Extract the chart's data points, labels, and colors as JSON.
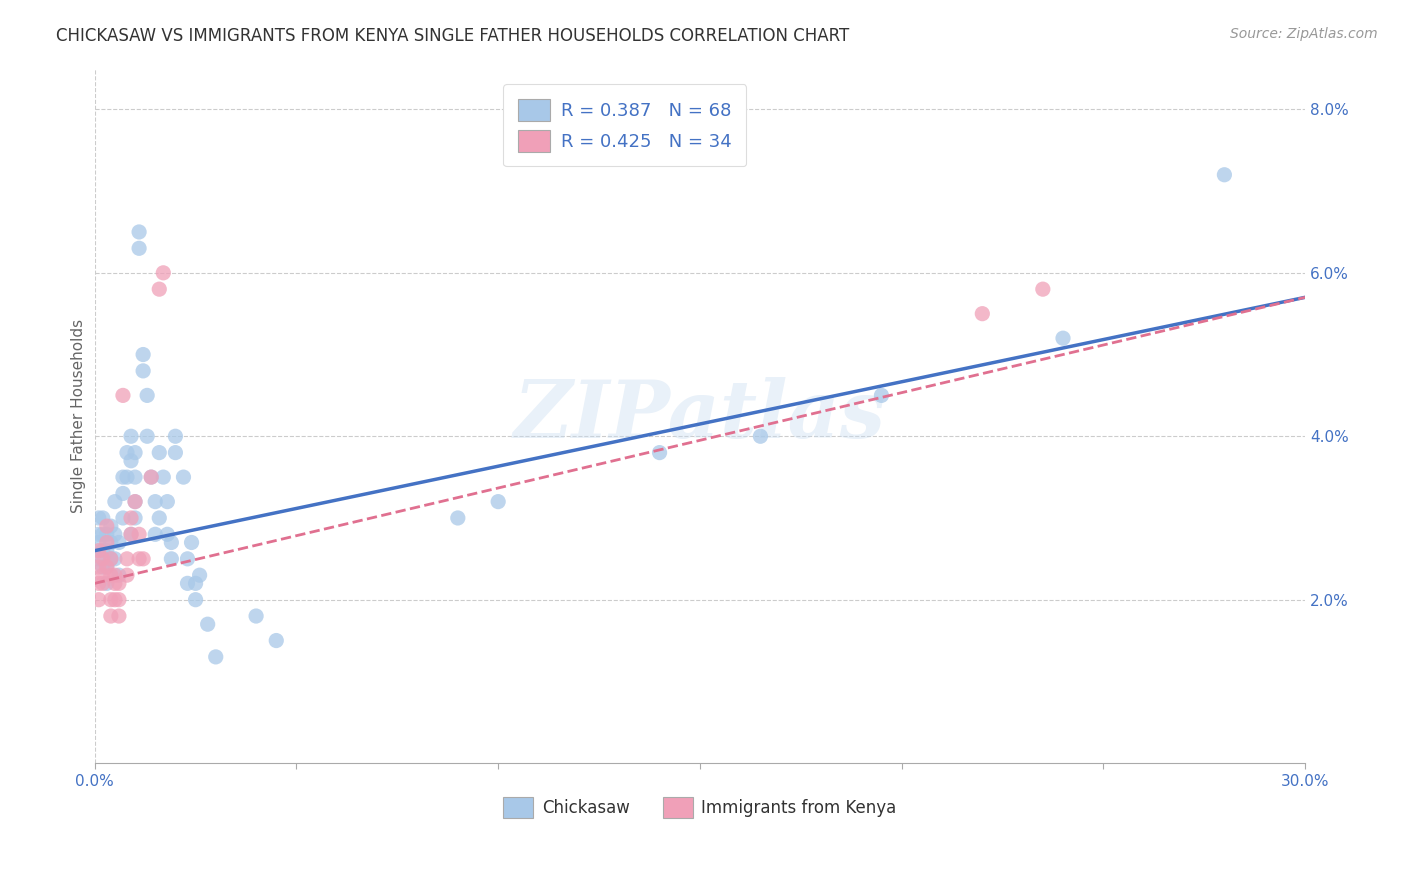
{
  "title": "CHICKASAW VS IMMIGRANTS FROM KENYA SINGLE FATHER HOUSEHOLDS CORRELATION CHART",
  "source": "Source: ZipAtlas.com",
  "ylabel": "Single Father Households",
  "xlim": [
    0.0,
    0.3
  ],
  "ylim": [
    0.0,
    0.085
  ],
  "xticks": [
    0.0,
    0.05,
    0.1,
    0.15,
    0.2,
    0.25,
    0.3
  ],
  "xtick_labels": [
    "0.0%",
    "",
    "",
    "",
    "",
    "",
    "30.0%"
  ],
  "yticks": [
    0.0,
    0.02,
    0.04,
    0.06,
    0.08
  ],
  "ytick_labels_right": [
    "",
    "2.0%",
    "4.0%",
    "6.0%",
    "8.0%"
  ],
  "chickasaw_color": "#A8C8E8",
  "kenya_color": "#F0A0B8",
  "chickasaw_line_color": "#4472C4",
  "kenya_line_color": "#E07090",
  "R_chickasaw": 0.387,
  "N_chickasaw": 68,
  "R_kenya": 0.425,
  "N_kenya": 34,
  "watermark": "ZIPatlas",
  "legend_labels": [
    "Chickasaw",
    "Immigrants from Kenya"
  ],
  "chickasaw_scatter": [
    [
      0.001,
      0.027
    ],
    [
      0.001,
      0.025
    ],
    [
      0.001,
      0.03
    ],
    [
      0.001,
      0.028
    ],
    [
      0.002,
      0.026
    ],
    [
      0.002,
      0.024
    ],
    [
      0.002,
      0.028
    ],
    [
      0.002,
      0.03
    ],
    [
      0.003,
      0.026
    ],
    [
      0.003,
      0.028
    ],
    [
      0.003,
      0.024
    ],
    [
      0.003,
      0.022
    ],
    [
      0.004,
      0.027
    ],
    [
      0.004,
      0.025
    ],
    [
      0.004,
      0.029
    ],
    [
      0.005,
      0.032
    ],
    [
      0.005,
      0.028
    ],
    [
      0.005,
      0.025
    ],
    [
      0.006,
      0.023
    ],
    [
      0.006,
      0.027
    ],
    [
      0.007,
      0.035
    ],
    [
      0.007,
      0.03
    ],
    [
      0.007,
      0.033
    ],
    [
      0.008,
      0.038
    ],
    [
      0.008,
      0.035
    ],
    [
      0.009,
      0.04
    ],
    [
      0.009,
      0.037
    ],
    [
      0.009,
      0.028
    ],
    [
      0.01,
      0.038
    ],
    [
      0.01,
      0.035
    ],
    [
      0.01,
      0.032
    ],
    [
      0.01,
      0.03
    ],
    [
      0.011,
      0.063
    ],
    [
      0.011,
      0.065
    ],
    [
      0.012,
      0.05
    ],
    [
      0.012,
      0.048
    ],
    [
      0.013,
      0.045
    ],
    [
      0.013,
      0.04
    ],
    [
      0.014,
      0.035
    ],
    [
      0.015,
      0.032
    ],
    [
      0.015,
      0.028
    ],
    [
      0.016,
      0.03
    ],
    [
      0.016,
      0.038
    ],
    [
      0.017,
      0.035
    ],
    [
      0.018,
      0.032
    ],
    [
      0.018,
      0.028
    ],
    [
      0.019,
      0.025
    ],
    [
      0.019,
      0.027
    ],
    [
      0.02,
      0.038
    ],
    [
      0.02,
      0.04
    ],
    [
      0.022,
      0.035
    ],
    [
      0.023,
      0.022
    ],
    [
      0.023,
      0.025
    ],
    [
      0.024,
      0.027
    ],
    [
      0.025,
      0.022
    ],
    [
      0.025,
      0.02
    ],
    [
      0.026,
      0.023
    ],
    [
      0.028,
      0.017
    ],
    [
      0.03,
      0.013
    ],
    [
      0.04,
      0.018
    ],
    [
      0.045,
      0.015
    ],
    [
      0.09,
      0.03
    ],
    [
      0.1,
      0.032
    ],
    [
      0.14,
      0.038
    ],
    [
      0.165,
      0.04
    ],
    [
      0.195,
      0.045
    ],
    [
      0.24,
      0.052
    ],
    [
      0.28,
      0.072
    ]
  ],
  "kenya_scatter": [
    [
      0.001,
      0.026
    ],
    [
      0.001,
      0.024
    ],
    [
      0.001,
      0.022
    ],
    [
      0.001,
      0.02
    ],
    [
      0.002,
      0.022
    ],
    [
      0.002,
      0.025
    ],
    [
      0.002,
      0.023
    ],
    [
      0.003,
      0.024
    ],
    [
      0.003,
      0.027
    ],
    [
      0.003,
      0.029
    ],
    [
      0.004,
      0.023
    ],
    [
      0.004,
      0.025
    ],
    [
      0.004,
      0.02
    ],
    [
      0.004,
      0.018
    ],
    [
      0.005,
      0.022
    ],
    [
      0.005,
      0.02
    ],
    [
      0.005,
      0.023
    ],
    [
      0.006,
      0.022
    ],
    [
      0.006,
      0.02
    ],
    [
      0.006,
      0.018
    ],
    [
      0.007,
      0.045
    ],
    [
      0.008,
      0.025
    ],
    [
      0.008,
      0.023
    ],
    [
      0.009,
      0.03
    ],
    [
      0.009,
      0.028
    ],
    [
      0.01,
      0.032
    ],
    [
      0.011,
      0.028
    ],
    [
      0.011,
      0.025
    ],
    [
      0.012,
      0.025
    ],
    [
      0.014,
      0.035
    ],
    [
      0.016,
      0.058
    ],
    [
      0.017,
      0.06
    ],
    [
      0.22,
      0.055
    ],
    [
      0.235,
      0.058
    ]
  ],
  "chickasaw_line": {
    "x0": 0.0,
    "x1": 0.3,
    "y0": 0.026,
    "y1": 0.057
  },
  "kenya_line": {
    "x0": 0.0,
    "x1": 0.3,
    "y0": 0.022,
    "y1": 0.057
  }
}
